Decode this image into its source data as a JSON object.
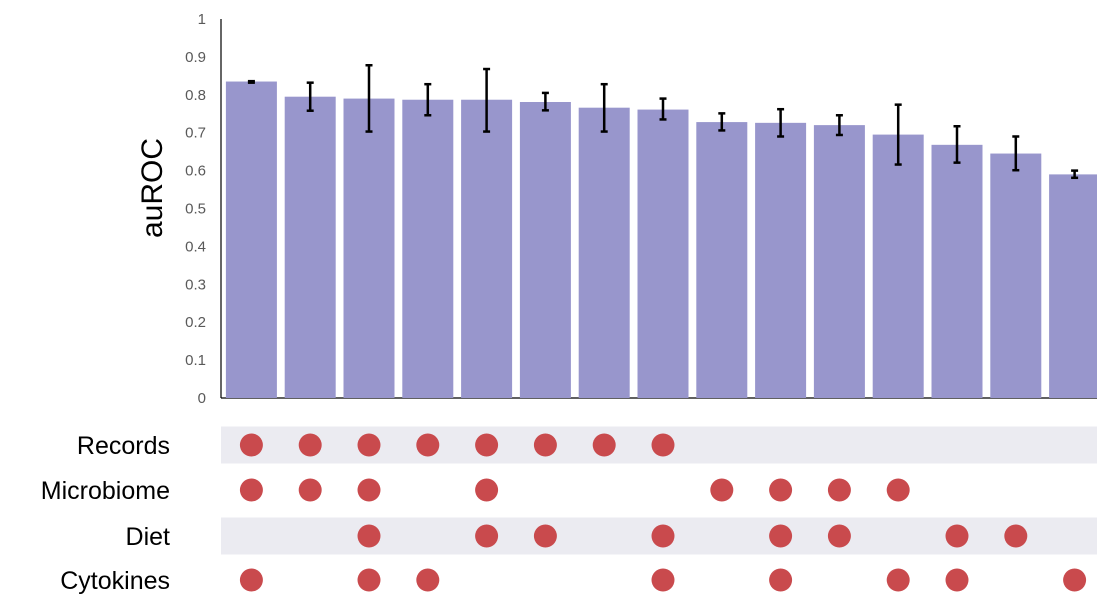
{
  "colors": {
    "bar": "#9896cc",
    "error_bar": "#000000",
    "dot": "#c94a4d",
    "row_band": "#ebebf1",
    "axis": "#000000"
  },
  "chart_data": {
    "type": "bar",
    "title": "",
    "xlabel": "",
    "ylabel": "auROC",
    "ylim": [
      0,
      1
    ],
    "yticks": [
      "0",
      "0.1",
      "0.2",
      "0.3",
      "0.4",
      "0.5",
      "0.6",
      "0.7",
      "0.8",
      "0.9",
      "1"
    ],
    "grid": false,
    "values": [
      0.835,
      0.795,
      0.79,
      0.787,
      0.787,
      0.781,
      0.766,
      0.761,
      0.728,
      0.726,
      0.72,
      0.695,
      0.668,
      0.645,
      0.59
    ],
    "error": [
      [
        0.832,
        0.836
      ],
      [
        0.758,
        0.832
      ],
      [
        0.703,
        0.878
      ],
      [
        0.746,
        0.828
      ],
      [
        0.703,
        0.868
      ],
      [
        0.759,
        0.805
      ],
      [
        0.703,
        0.828
      ],
      [
        0.735,
        0.79
      ],
      [
        0.706,
        0.751
      ],
      [
        0.69,
        0.762
      ],
      [
        0.694,
        0.746
      ],
      [
        0.616,
        0.774
      ],
      [
        0.621,
        0.717
      ],
      [
        0.601,
        0.69
      ],
      [
        0.581,
        0.6
      ]
    ],
    "matrix": {
      "rows": [
        "Records",
        "Microbiome",
        "Diet",
        "Cytokines"
      ],
      "membership": [
        [
          1,
          1,
          1,
          1,
          1,
          1,
          1,
          1,
          0,
          0,
          0,
          0,
          0,
          0,
          0
        ],
        [
          1,
          1,
          1,
          0,
          1,
          0,
          0,
          0,
          1,
          1,
          1,
          1,
          0,
          0,
          0
        ],
        [
          0,
          0,
          1,
          0,
          1,
          1,
          0,
          1,
          0,
          1,
          1,
          0,
          1,
          1,
          0
        ],
        [
          1,
          0,
          1,
          1,
          0,
          0,
          0,
          1,
          0,
          1,
          0,
          1,
          1,
          0,
          1
        ]
      ]
    }
  }
}
